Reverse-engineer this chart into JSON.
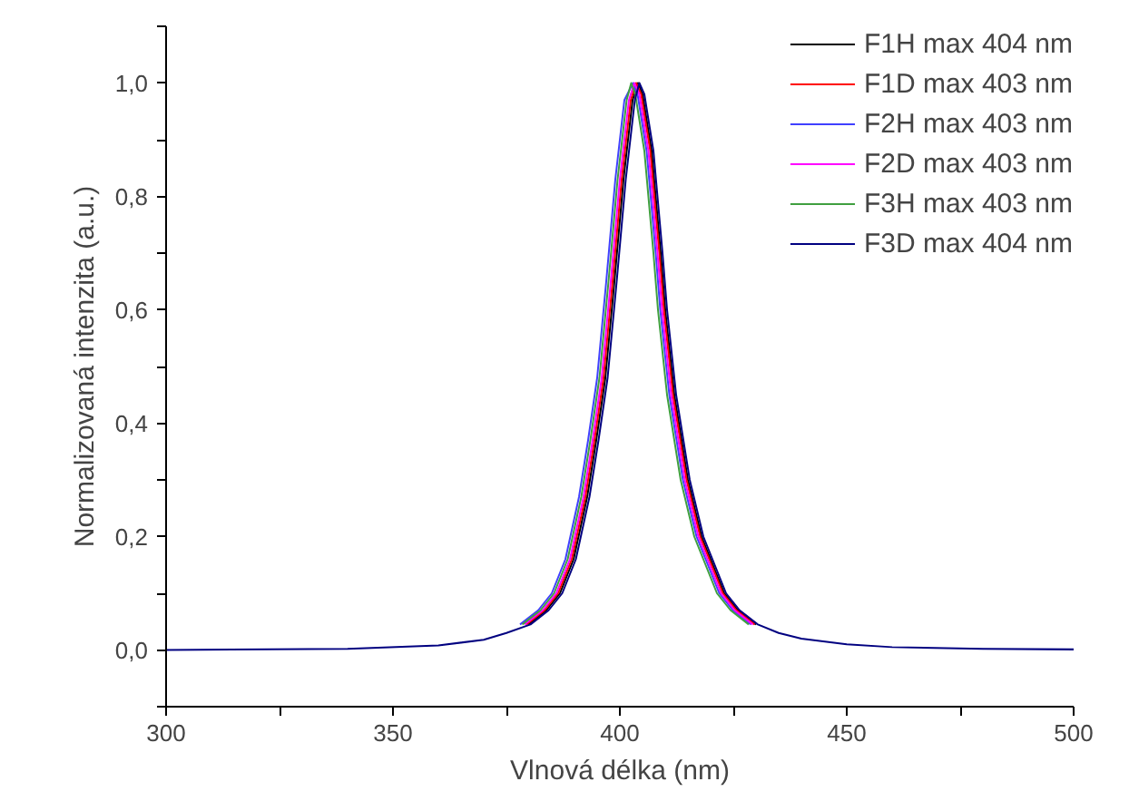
{
  "chart_data": {
    "type": "line",
    "xlabel": "Vlnová délka (nm)",
    "ylabel": "Normalizovaná intenzita (a.u.)",
    "xlim": [
      300,
      500
    ],
    "ylim": [
      -0.1,
      1.1
    ],
    "xticks": [
      300,
      {
        "value": 325,
        "label": null
      },
      350,
      {
        "value": 375,
        "label": null
      },
      400,
      {
        "value": 425,
        "label": null
      },
      450,
      {
        "value": 475,
        "label": null
      },
      500
    ],
    "yticks": [
      {
        "value": -0.1,
        "label": null
      },
      {
        "value": 0,
        "label": "0,0"
      },
      {
        "value": 0.1,
        "label": null
      },
      {
        "value": 0.2,
        "label": "0,2"
      },
      {
        "value": 0.3,
        "label": null
      },
      {
        "value": 0.4,
        "label": "0,4"
      },
      {
        "value": 0.5,
        "label": null
      },
      {
        "value": 0.6,
        "label": "0,6"
      },
      {
        "value": 0.7,
        "label": null
      },
      {
        "value": 0.8,
        "label": "0,8"
      },
      {
        "value": 0.9,
        "label": null
      },
      {
        "value": 1.0,
        "label": "1,0"
      },
      {
        "value": 1.1,
        "label": null
      }
    ],
    "grid": false,
    "legend": "top right",
    "marker": "none",
    "line_style": "solid",
    "series": [
      {
        "name": "F1H max 404 nm",
        "color": "#000000",
        "x": [
          379.8,
          383.8,
          386.8,
          389.8,
          392.8,
          394.8,
          396.8,
          398.8,
          400.8,
          402.8,
          404,
          405,
          407,
          409,
          410,
          412,
          415,
          418,
          421,
          423,
          426,
          430
        ],
        "values": [
          0.045,
          0.07,
          0.1,
          0.16,
          0.27,
          0.37,
          0.48,
          0.65,
          0.83,
          0.97,
          1.0,
          0.98,
          0.88,
          0.7,
          0.6,
          0.45,
          0.3,
          0.2,
          0.14,
          0.1,
          0.07,
          0.045
        ]
      },
      {
        "name": "F1D max 403 nm",
        "color": "#ff0000",
        "x": [
          379.4,
          383.4,
          386.4,
          389.4,
          392.4,
          394.4,
          396.4,
          398.4,
          400.4,
          402.4,
          403.6,
          404.7,
          406.7,
          408.7,
          409.7,
          411.7,
          414.7,
          417.7,
          420.7,
          422.7,
          425.7,
          429.7
        ],
        "values": [
          0.045,
          0.07,
          0.1,
          0.16,
          0.27,
          0.37,
          0.48,
          0.65,
          0.83,
          0.97,
          1.0,
          0.98,
          0.88,
          0.7,
          0.6,
          0.45,
          0.3,
          0.2,
          0.14,
          0.1,
          0.07,
          0.045
        ]
      },
      {
        "name": "F2H max 403 nm",
        "color": "#4040ff",
        "x": [
          378,
          382,
          385,
          388,
          391,
          393,
          395,
          397,
          399,
          401,
          402.9,
          403.9,
          405.9,
          407.9,
          408.9,
          410.9,
          413.9,
          416.9,
          419.9,
          421.9,
          424.9,
          428.9
        ],
        "values": [
          0.045,
          0.07,
          0.1,
          0.16,
          0.27,
          0.37,
          0.48,
          0.65,
          0.83,
          0.97,
          1.0,
          0.98,
          0.88,
          0.7,
          0.6,
          0.45,
          0.3,
          0.2,
          0.14,
          0.1,
          0.07,
          0.045
        ]
      },
      {
        "name": "F2D max 403 nm",
        "color": "#ff00ff",
        "x": [
          379,
          383,
          386,
          389,
          392,
          394,
          396,
          398,
          400,
          402,
          403.2,
          404.3,
          406.3,
          408.3,
          409.3,
          411.3,
          414.3,
          417.3,
          420.3,
          422.3,
          425.3,
          429.3
        ],
        "values": [
          0.045,
          0.07,
          0.1,
          0.16,
          0.27,
          0.37,
          0.48,
          0.65,
          0.83,
          0.97,
          1.0,
          0.98,
          0.88,
          0.7,
          0.6,
          0.45,
          0.3,
          0.2,
          0.14,
          0.1,
          0.07,
          0.045
        ]
      },
      {
        "name": "F3H max 403 nm",
        "color": "#3f9f3f",
        "x": [
          378.5,
          382.5,
          385.5,
          388.5,
          391.5,
          393.5,
          395.5,
          397.5,
          399.5,
          401.5,
          402.5,
          403.4,
          405.4,
          407.4,
          408.4,
          410.4,
          413.4,
          416.4,
          419.4,
          421.4,
          424.4,
          428.4
        ],
        "values": [
          0.045,
          0.07,
          0.1,
          0.16,
          0.27,
          0.37,
          0.48,
          0.65,
          0.83,
          0.97,
          1.0,
          0.98,
          0.88,
          0.7,
          0.6,
          0.45,
          0.3,
          0.2,
          0.14,
          0.1,
          0.07,
          0.045
        ]
      },
      {
        "name": "F3D max 404 nm",
        "color": "#000080",
        "x": [
          300,
          340,
          360,
          370,
          375,
          380.3,
          384.3,
          387.3,
          390.3,
          393.3,
          395.3,
          397.3,
          399.3,
          401.3,
          403.3,
          404.3,
          405.4,
          407.4,
          409.4,
          410.4,
          412.4,
          415.4,
          418.4,
          421.4,
          423.4,
          426.4,
          430.4,
          435,
          440,
          450,
          460,
          480,
          500
        ],
        "values": [
          0,
          0.002,
          0.008,
          0.018,
          0.03,
          0.045,
          0.07,
          0.1,
          0.16,
          0.27,
          0.37,
          0.48,
          0.65,
          0.83,
          0.97,
          1.0,
          0.98,
          0.88,
          0.7,
          0.6,
          0.45,
          0.3,
          0.2,
          0.14,
          0.1,
          0.07,
          0.045,
          0.03,
          0.02,
          0.01,
          0.005,
          0.002,
          0.001
        ]
      }
    ]
  }
}
